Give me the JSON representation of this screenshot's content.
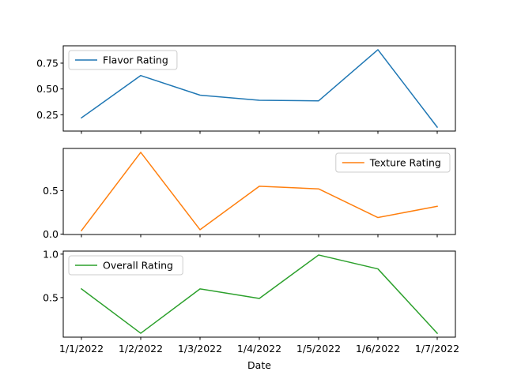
{
  "chart_data": {
    "type": "line",
    "x": [
      "1/1/2022",
      "1/2/2022",
      "1/3/2022",
      "1/4/2022",
      "1/5/2022",
      "1/6/2022",
      "1/7/2022"
    ],
    "xlabel": "Date",
    "subplots": [
      {
        "series": [
          {
            "name": "Flavor Rating",
            "color": "#1f77b4",
            "values": [
              0.22,
              0.63,
              0.44,
              0.39,
              0.385,
              0.88,
              0.13
            ]
          }
        ],
        "yticks": [
          0.25,
          0.5,
          0.75
        ],
        "ytick_labels": [
          "0.25",
          "0.50",
          "0.75"
        ],
        "ylim": [
          0.092,
          0.918
        ],
        "legend": "upper-left"
      },
      {
        "series": [
          {
            "name": "Texture Rating",
            "color": "#ff7f0e",
            "values": [
              0.04,
              0.94,
              0.05,
              0.55,
              0.52,
              0.19,
              0.32
            ]
          }
        ],
        "yticks": [
          0,
          0.5
        ],
        "ytick_labels": [
          "0.0",
          "0.5"
        ],
        "ylim": [
          -0.005,
          0.985
        ],
        "legend": "upper-right"
      },
      {
        "series": [
          {
            "name": "Overall Rating",
            "color": "#2ca02c",
            "values": [
              0.6,
              0.09,
              0.6,
              0.49,
              0.99,
              0.83,
              0.09
            ]
          }
        ],
        "yticks": [
          0.5,
          1.0
        ],
        "ytick_labels": [
          "0.5",
          "1.0"
        ],
        "ylim": [
          0.045,
          1.035
        ],
        "legend": "upper-left"
      }
    ]
  }
}
